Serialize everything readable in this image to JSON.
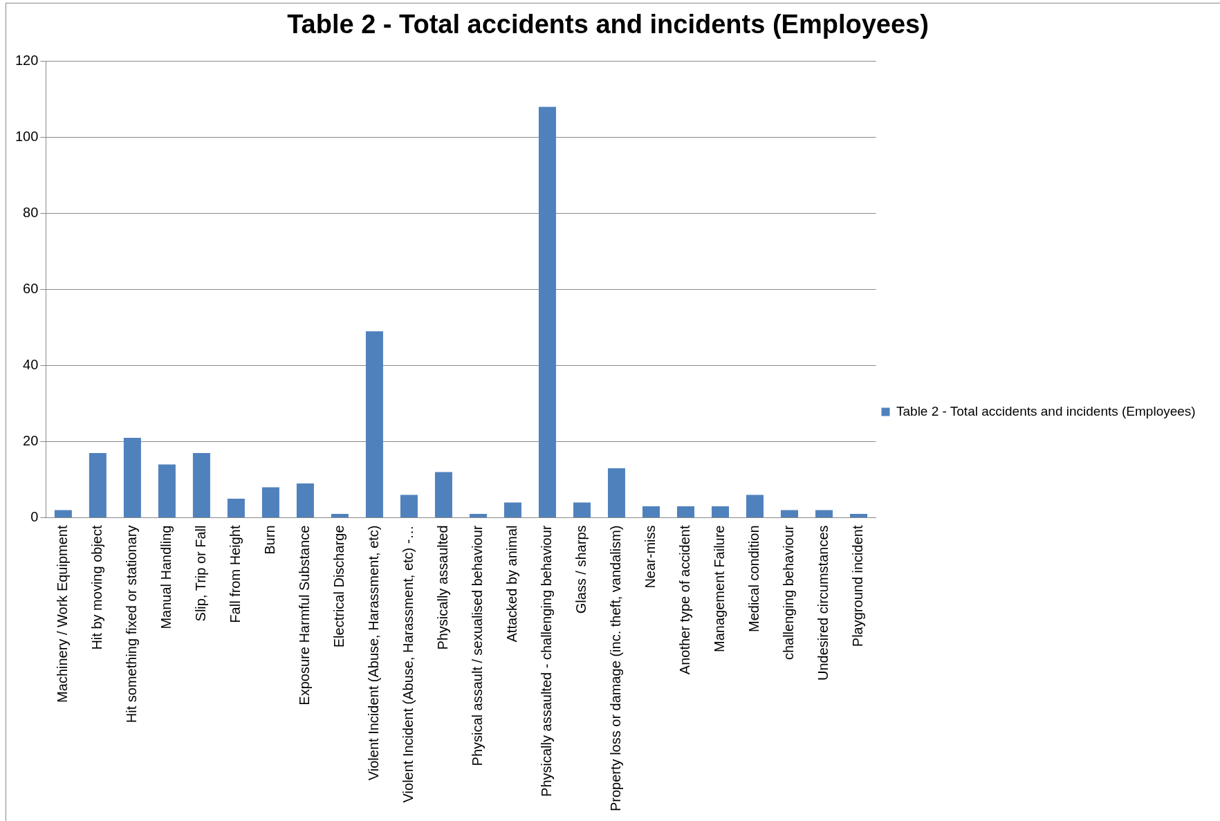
{
  "chart_data": {
    "type": "bar",
    "title": "Table 2 - Total accidents and incidents (Employees)",
    "categories": [
      "Machinery / Work Equipment",
      "Hit by moving object",
      "Hit something fixed or stationary",
      "Manual Handling",
      "Slip, Trip or Fall",
      "Fall from Height",
      "Burn",
      "Exposure Harmful Substance",
      "Electrical Discharge",
      "Violent Incident (Abuse, Harassment, etc)",
      "Violent Incident (Abuse, Harassment, etc) -…",
      "Physically assaulted",
      "Physical assault / sexualised behaviour",
      "Attacked by animal",
      "Physically assaulted - challenging behaviour",
      "Glass / sharps",
      "Property loss or damage (inc. theft, vandalism)",
      "Near-miss",
      "Another type of accident",
      "Management Failure",
      "Medical condition",
      "challenging behaviour",
      "Undesired circumstances",
      "Playground incident"
    ],
    "series": [
      {
        "name": "Table 2 - Total accidents and incidents (Employees)",
        "color": "#4f81bd",
        "values": [
          2,
          17,
          21,
          14,
          17,
          5,
          8,
          9,
          1,
          49,
          6,
          12,
          1,
          4,
          108,
          4,
          13,
          3,
          3,
          3,
          6,
          2,
          2,
          1
        ]
      }
    ],
    "ylim": [
      0,
      120
    ],
    "yticks": [
      0,
      20,
      40,
      60,
      80,
      100,
      120
    ],
    "grid": "y",
    "legend": "right"
  }
}
